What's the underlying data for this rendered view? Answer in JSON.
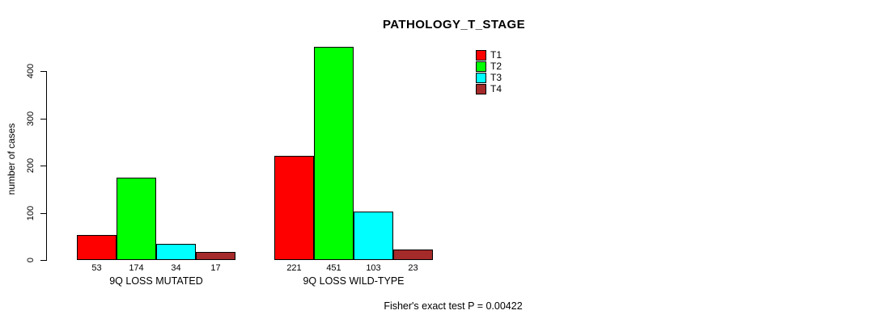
{
  "chart_data": {
    "type": "bar",
    "title": "PATHOLOGY_T_STAGE",
    "ylabel": "number of cases",
    "xlabel": "",
    "y_ticks": [
      0,
      100,
      200,
      300,
      400
    ],
    "ylim": [
      0,
      460
    ],
    "grid": false,
    "legend_position": "top-right",
    "categories": [
      "9Q LOSS MUTATED",
      "9Q LOSS WILD-TYPE"
    ],
    "series": [
      {
        "name": "T1",
        "color": "#ff0000",
        "values": [
          53,
          221
        ]
      },
      {
        "name": "T2",
        "color": "#00ff00",
        "values": [
          174,
          451
        ]
      },
      {
        "name": "T3",
        "color": "#00ffff",
        "values": [
          34,
          103
        ]
      },
      {
        "name": "T4",
        "color": "#a52a2a",
        "values": [
          17,
          23
        ]
      }
    ],
    "bar_value_labels_shown": true,
    "annotation": "Fisher's exact test P = 0.00422"
  },
  "colors": {
    "background": "#ffffff",
    "axis": "#000000",
    "bar_border": "#000000",
    "text": "#000000"
  }
}
